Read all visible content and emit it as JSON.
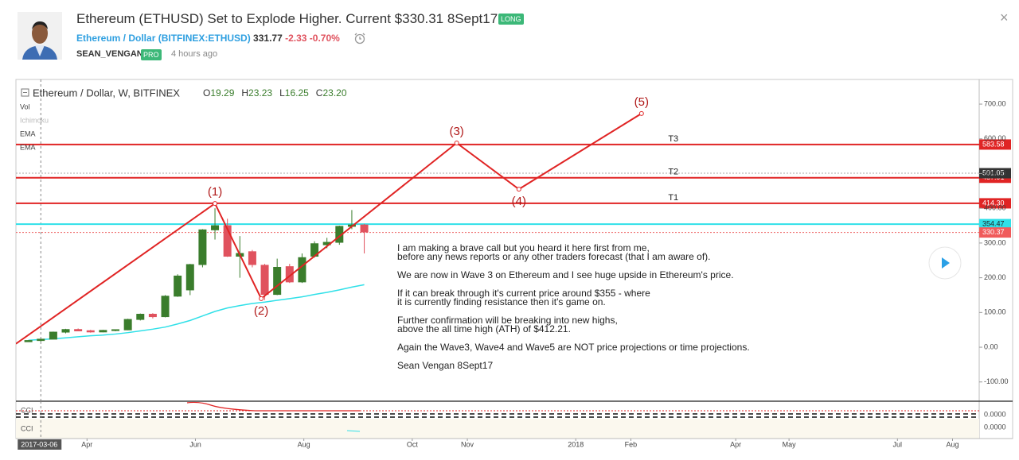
{
  "header": {
    "title": "Ethereum (ETHUSD) Set to Explode Higher. Current $330.31 8Sept17",
    "badge": "LONG",
    "symbol_name": "Ethereum / Dollar",
    "symbol": "(BITFINEX:ETHUSD)",
    "price": "331.77",
    "change": "-2.33",
    "change_pct": "-0.70%",
    "author": "SEAN_VENGAN",
    "author_badge": "PRO",
    "time": "4 hours ago"
  },
  "chart": {
    "type": "candlestick",
    "legend_title": "Ethereum / Dollar, W, BITFINEX",
    "legend_ohlc": [
      {
        "key": "O",
        "value": "19.29"
      },
      {
        "key": "H",
        "value": "23.23"
      },
      {
        "key": "L",
        "value": "16.25"
      },
      {
        "key": "C",
        "value": "23.20"
      }
    ],
    "indicators": [
      "Vol",
      "Ichimoku",
      "EMA",
      "EMA"
    ],
    "up_color": "#3a7d2c",
    "down_color": "#e0525e",
    "ema_color": "#2fe0e8",
    "wave_color": "#e02424",
    "xlim": [
      "2017-02-20",
      "2018-08-16"
    ],
    "ylim": [
      -144,
      771
    ],
    "cursor_date": "2017-03-06",
    "xticks": [
      {
        "value": "2017-04-01",
        "label": "Apr"
      },
      {
        "value": "2017-06-01",
        "label": "Jun"
      },
      {
        "value": "2017-08-01",
        "label": "Aug"
      },
      {
        "value": "2017-10-01",
        "label": "Oct"
      },
      {
        "value": "2017-11-01",
        "label": "Nov"
      },
      {
        "value": "2018-01-01",
        "label": "2018"
      },
      {
        "value": "2018-02-01",
        "label": "Feb"
      },
      {
        "value": "2018-04-01",
        "label": "Apr"
      },
      {
        "value": "2018-05-01",
        "label": "May"
      },
      {
        "value": "2018-07-01",
        "label": "Jul"
      },
      {
        "value": "2018-08-01",
        "label": "Aug"
      }
    ],
    "yticks": [
      {
        "value": 700,
        "label": "700.00"
      },
      {
        "value": 600,
        "label": "600.00"
      },
      {
        "value": 500,
        "label": "500.00"
      },
      {
        "value": 400,
        "label": "400.00"
      },
      {
        "value": 300,
        "label": "300.00"
      },
      {
        "value": 200,
        "label": "200.00"
      },
      {
        "value": 100,
        "label": "100.00"
      },
      {
        "value": 0,
        "label": "0.00"
      },
      {
        "value": -100,
        "label": "-100.00"
      }
    ],
    "x": [
      "2017-02-27",
      "2017-03-06",
      "2017-03-13",
      "2017-03-20",
      "2017-03-27",
      "2017-04-03",
      "2017-04-10",
      "2017-04-17",
      "2017-04-24",
      "2017-05-01",
      "2017-05-08",
      "2017-05-15",
      "2017-05-22",
      "2017-05-29",
      "2017-06-05",
      "2017-06-12",
      "2017-06-19",
      "2017-06-26",
      "2017-07-03",
      "2017-07-10",
      "2017-07-17",
      "2017-07-24",
      "2017-07-31",
      "2017-08-07",
      "2017-08-14",
      "2017-08-21",
      "2017-08-28",
      "2017-09-04"
    ],
    "open": [
      15.8,
      19.29,
      23.2,
      43.5,
      51,
      47.5,
      44,
      48,
      50,
      80,
      95,
      88,
      147,
      165,
      238,
      338,
      350,
      262,
      275,
      236,
      152,
      232,
      188,
      262,
      295,
      302,
      348,
      352
    ],
    "high": [
      20,
      23.23,
      45,
      53,
      54,
      50,
      50,
      51,
      82,
      97,
      98,
      150,
      210,
      240,
      340,
      400,
      370,
      320,
      280,
      240,
      255,
      240,
      270,
      305,
      315,
      350,
      395,
      355
    ],
    "low": [
      15.5,
      16.25,
      23,
      40,
      46,
      42,
      43,
      46,
      49,
      77,
      83,
      86,
      145,
      150,
      230,
      310,
      260,
      200,
      230,
      136,
      150,
      185,
      185,
      258,
      285,
      295,
      340,
      270
    ],
    "close": [
      19.3,
      23.2,
      43.5,
      51,
      47,
      44,
      48.5,
      50.5,
      80,
      95,
      88,
      147,
      205,
      238,
      338,
      350,
      262,
      270,
      238,
      152,
      230,
      188,
      258,
      298,
      302,
      348,
      352,
      331.77
    ],
    "ema": [
      20,
      22,
      24,
      27,
      30,
      33,
      35,
      38,
      42,
      47,
      52,
      58,
      67,
      77,
      90,
      103,
      113,
      120,
      126,
      130,
      135,
      140,
      145,
      152,
      158,
      165,
      173,
      180
    ],
    "waves": {
      "x": [
        "2017-02-20",
        "2017-06-12",
        "2017-07-08",
        "2017-10-26",
        "2017-11-30",
        "2018-02-07"
      ],
      "values": [
        10,
        414,
        140,
        588,
        455,
        673
      ],
      "labels": [
        null,
        "(1)",
        "(2)",
        "(3)",
        "(4)",
        "(5)"
      ]
    },
    "price_lines": [
      {
        "value": 583.58,
        "label": "583.58",
        "name": "T3",
        "color": "#e02424",
        "text_color": "#ffffff"
      },
      {
        "value": 487.91,
        "label": "487.91",
        "name": "T2",
        "color": "#e02424",
        "text_color": "#ffffff"
      },
      {
        "value": 501.05,
        "label": "501.05",
        "color": "#aaaaaa",
        "box_color": "#333333",
        "text_color": "#ffffff",
        "dashed": true
      },
      {
        "value": 414.3,
        "label": "414.30",
        "name": "T1",
        "color": "#e02424",
        "text_color": "#ffffff"
      },
      {
        "value": 354.47,
        "label": "354.47",
        "color": "#2fe0e8",
        "text_color": "#222222"
      },
      {
        "value": 330.37,
        "label": "330.37",
        "color": "#e66",
        "box_color": "#f05a5a",
        "text_color": "#ffffff",
        "dashed": true
      }
    ],
    "cci_label": "CCI",
    "cci_label_2": "CCI",
    "cci_tick": "0.0000",
    "cci_tick_2": "0.0000"
  },
  "note": [
    [
      "I am making a brave call but you heard it here first from me,",
      "before any news reports or any other traders forecast (that I am aware of)."
    ],
    [
      "We are now in Wave 3 on Ethereum and I see huge upside in Ethereum's price."
    ],
    [
      "If it can break through it's current price around $355 - where",
      "it is currently finding resistance then it's game on."
    ],
    [
      "Further confirmation will be breaking into new highs,",
      "above the all time high (ATH) of $412.21."
    ],
    [
      "Again the Wave3, Wave4 and Wave5 are NOT price projections or time projections."
    ],
    [
      "Sean Vengan 8Sept17"
    ]
  ]
}
